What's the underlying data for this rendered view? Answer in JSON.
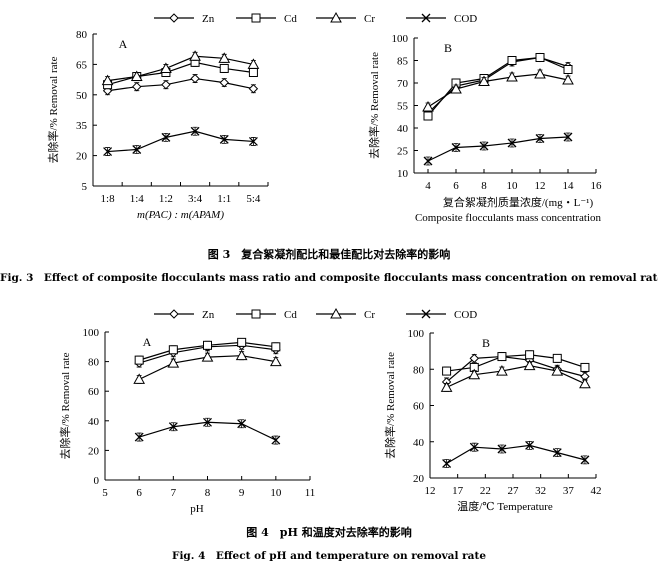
{
  "legend": {
    "items": [
      {
        "name": "Zn",
        "marker": "diamond"
      },
      {
        "name": "Cd",
        "marker": "square"
      },
      {
        "name": "Cr",
        "marker": "triangle"
      },
      {
        "name": "COD",
        "marker": "x"
      }
    ]
  },
  "figure3": {
    "caption_cn": "图 3　复合絮凝剂配比和最佳配比对去除率的影响",
    "caption_en": "Fig. 3　Effect of composite flocculants mass ratio and composite flocculants mass concentration on removal rate"
  },
  "figure4": {
    "caption_cn": "图 4　pH 和温度对去除率的影响",
    "caption_en": "Fig. 4　Effect of pH and temperature on removal rate"
  },
  "chart_data": [
    {
      "id": "fig3A",
      "type": "line",
      "panel_label": "A",
      "ylabel": "去除率/% Removal rate",
      "xlabel": "m(PAC) : m(APAM)",
      "categories": [
        "1:8",
        "1:4",
        "1:2",
        "3:4",
        "1:1",
        "5:4"
      ],
      "yticks": [
        5,
        20,
        35,
        50,
        65,
        80
      ],
      "ylim": [
        5,
        80
      ],
      "series": [
        {
          "name": "Zn",
          "values": [
            52,
            54,
            55,
            58,
            56,
            53
          ]
        },
        {
          "name": "Cd",
          "values": [
            55,
            59,
            61,
            66,
            63,
            61
          ]
        },
        {
          "name": "Cr",
          "values": [
            57,
            59,
            63,
            69,
            68,
            65
          ]
        },
        {
          "name": "COD",
          "values": [
            22,
            23,
            29,
            32,
            28,
            27
          ]
        }
      ]
    },
    {
      "id": "fig3B",
      "type": "line",
      "panel_label": "B",
      "ylabel": "去除率/% Removal rate",
      "xlabel": "复合絮凝剂质量浓度/(mg・L⁻¹)",
      "xlabel2": "Composite flocculants mass concentration",
      "xticks": [
        4,
        6,
        8,
        10,
        12,
        14,
        16
      ],
      "xlim": [
        3,
        16
      ],
      "yticks": [
        10,
        25,
        40,
        55,
        70,
        85,
        100
      ],
      "ylim": [
        10,
        100
      ],
      "x": [
        4,
        6,
        8,
        10,
        12,
        14
      ],
      "series": [
        {
          "name": "Zn",
          "values": [
            50,
            68,
            72,
            84,
            87,
            81
          ]
        },
        {
          "name": "Cd",
          "values": [
            48,
            70,
            73,
            85,
            87,
            79
          ]
        },
        {
          "name": "Cr",
          "values": [
            54,
            66,
            71,
            74,
            76,
            72
          ]
        },
        {
          "name": "COD",
          "values": [
            18,
            27,
            28,
            30,
            33,
            34
          ]
        }
      ]
    },
    {
      "id": "fig4A",
      "type": "line",
      "panel_label": "A",
      "ylabel": "去除率/% Removal rate",
      "xlabel": "pH",
      "xticks": [
        5,
        6,
        7,
        8,
        9,
        10,
        11
      ],
      "xlim": [
        5,
        11
      ],
      "yticks": [
        0,
        20,
        40,
        60,
        80,
        100
      ],
      "ylim": [
        0,
        100
      ],
      "x": [
        6,
        7,
        8,
        9,
        10
      ],
      "series": [
        {
          "name": "Zn",
          "values": [
            79,
            86,
            90,
            91,
            88
          ]
        },
        {
          "name": "Cd",
          "values": [
            81,
            88,
            91,
            93,
            90
          ]
        },
        {
          "name": "Cr",
          "values": [
            68,
            79,
            83,
            84,
            80
          ]
        },
        {
          "name": "COD",
          "values": [
            29,
            36,
            39,
            38,
            27
          ]
        }
      ]
    },
    {
      "id": "fig4B",
      "type": "line",
      "panel_label": "B",
      "ylabel": "去除率/% Removal rate",
      "xlabel": "温度/℃ Temperature",
      "xticks": [
        12,
        17,
        22,
        27,
        32,
        37,
        42
      ],
      "xlim": [
        12,
        42
      ],
      "yticks": [
        20,
        40,
        60,
        80,
        100
      ],
      "ylim": [
        20,
        100
      ],
      "x": [
        15,
        20,
        25,
        30,
        35,
        40
      ],
      "series": [
        {
          "name": "Zn",
          "values": [
            73,
            86,
            87,
            85,
            80,
            76
          ]
        },
        {
          "name": "Cd",
          "values": [
            79,
            81,
            87,
            88,
            86,
            81
          ]
        },
        {
          "name": "Cr",
          "values": [
            70,
            77,
            79,
            82,
            79,
            72
          ]
        },
        {
          "name": "COD",
          "values": [
            28,
            37,
            36,
            38,
            34,
            30
          ]
        }
      ]
    }
  ]
}
